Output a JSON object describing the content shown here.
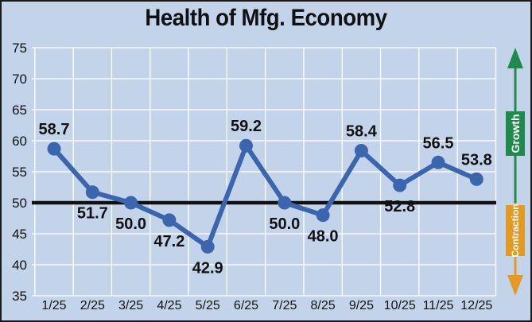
{
  "chart_data": {
    "type": "line",
    "title": "Health of Mfg. Economy",
    "categories": [
      "1/25",
      "2/25",
      "3/25",
      "4/25",
      "5/25",
      "6/25",
      "7/25",
      "8/25",
      "9/25",
      "10/25",
      "11/25",
      "12/25"
    ],
    "series": [
      {
        "values": [
          58.7,
          51.7,
          50.0,
          47.2,
          42.9,
          59.2,
          50.0,
          48.0,
          58.4,
          52.8,
          56.5,
          53.8
        ]
      }
    ],
    "data_labels": [
      "58.7",
      "51.7",
      "50.0",
      "47.2",
      "42.9",
      "59.2",
      "50.0",
      "48.0",
      "58.4",
      "52.8",
      "56.5",
      "53.8"
    ],
    "y_ticks": [
      35,
      40,
      45,
      50,
      55,
      60,
      65,
      70,
      75
    ],
    "ylim": [
      35,
      75
    ],
    "reference_line": 50,
    "grid": true,
    "indicator": {
      "growth_label": "Growth",
      "contraction_label": "Contraction"
    },
    "colors": {
      "background": "#c3d4ea",
      "line": "#3b65ac",
      "reference": "#111111",
      "growth": "#1f8a4c",
      "contraction": "#e39a25"
    }
  }
}
